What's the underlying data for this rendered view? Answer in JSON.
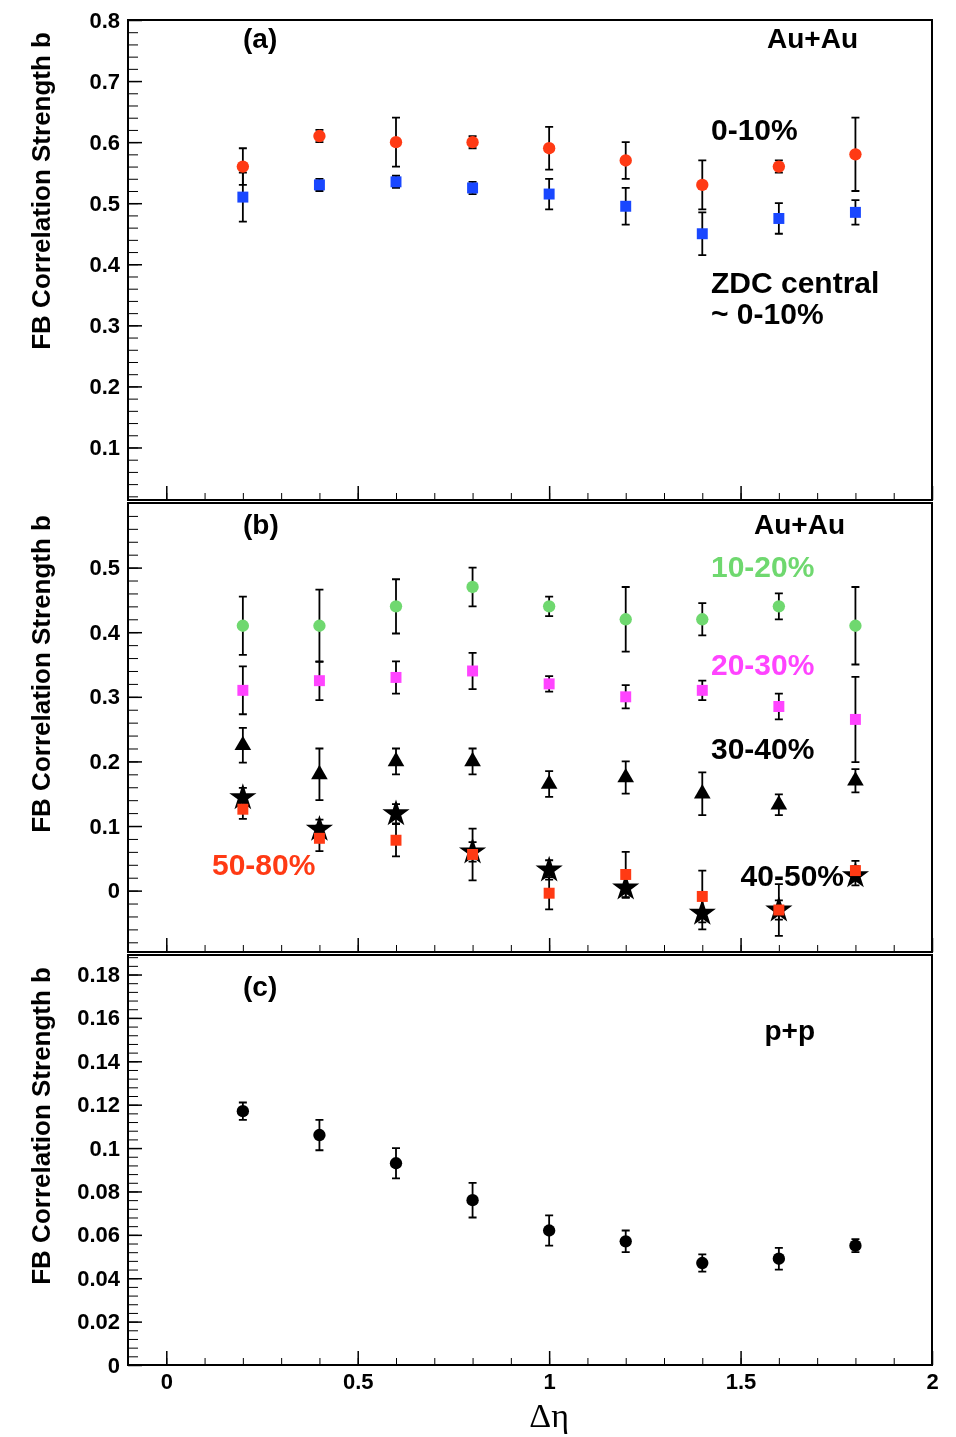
{
  "chart_data": [
    {
      "type": "scatter",
      "annotations": [
        "(a)",
        "Au+Au"
      ],
      "ylabel": "FB Correlation Strength b",
      "x": [
        0.2,
        0.4,
        0.6,
        0.8,
        1.0,
        1.2,
        1.4,
        1.6,
        1.8
      ],
      "xlim": [
        -0.1,
        2
      ],
      "xticks": [
        0,
        0.5,
        1,
        1.5,
        2
      ],
      "ylim": [
        0.014,
        0.8
      ],
      "yticks": [
        0.1,
        0.2,
        0.3,
        0.4,
        0.5,
        0.6,
        0.7,
        0.8
      ],
      "tick_labels": "y",
      "series": [
        {
          "name": "0-10%",
          "color": "#ff3a14",
          "marker": "circle",
          "values": [
            0.56,
            0.61,
            0.6,
            0.6,
            0.59,
            0.57,
            0.53,
            0.56,
            0.58
          ],
          "errors": [
            0.03,
            0.01,
            0.04,
            0.01,
            0.035,
            0.03,
            0.04,
            0.01,
            0.06
          ]
        },
        {
          "name": "ZDC central\n~ 0-10%",
          "color": "#1947ff",
          "marker": "square",
          "values": [
            0.51,
            0.53,
            0.535,
            0.525,
            0.515,
            0.495,
            0.45,
            0.475,
            0.485
          ],
          "errors": [
            0.04,
            0.01,
            0.01,
            0.01,
            0.025,
            0.03,
            0.035,
            0.025,
            0.02
          ]
        }
      ]
    },
    {
      "type": "scatter",
      "annotations": [
        "(b)",
        "Au+Au"
      ],
      "ylabel": "FB Correlation Strength b",
      "x": [
        0.2,
        0.4,
        0.6,
        0.8,
        1.0,
        1.2,
        1.4,
        1.6,
        1.8
      ],
      "xlim": [
        -0.1,
        2
      ],
      "xticks": [
        0,
        0.5,
        1,
        1.5,
        2
      ],
      "ylim": [
        -0.095,
        0.6
      ],
      "yticks": [
        0,
        0.1,
        0.2,
        0.3,
        0.4,
        0.5
      ],
      "tick_labels": "y",
      "series": [
        {
          "name": "10-20%",
          "color": "#6fd86f",
          "marker": "circle",
          "values": [
            0.41,
            0.41,
            0.44,
            0.47,
            0.44,
            0.42,
            0.42,
            0.44,
            0.41
          ],
          "errors": [
            0.045,
            0.056,
            0.042,
            0.03,
            0.015,
            0.05,
            0.025,
            0.02,
            0.06
          ]
        },
        {
          "name": "20-30%",
          "color": "#ff44ff",
          "marker": "square",
          "values": [
            0.31,
            0.325,
            0.33,
            0.34,
            0.32,
            0.3,
            0.31,
            0.285,
            0.265
          ],
          "errors": [
            0.037,
            0.03,
            0.025,
            0.028,
            0.012,
            0.018,
            0.015,
            0.02,
            0.066
          ]
        },
        {
          "name": "30-40%",
          "color": "#000000",
          "marker": "triangle",
          "values": [
            0.225,
            0.18,
            0.2,
            0.2,
            0.165,
            0.175,
            0.15,
            0.133,
            0.17
          ],
          "errors": [
            0.027,
            0.04,
            0.02,
            0.02,
            0.02,
            0.025,
            0.033,
            0.016,
            0.018
          ]
        },
        {
          "name": "40-50%",
          "color": "#000000",
          "marker": "star",
          "values": [
            0.144,
            0.095,
            0.119,
            0.06,
            0.032,
            0.004,
            -0.035,
            -0.03,
            0.023
          ],
          "errors": [
            0.015,
            0.015,
            0.015,
            0.015,
            0.015,
            0.015,
            0.025,
            0.015,
            0.015
          ]
        },
        {
          "name": "50-80%",
          "color": "#ff3a14",
          "marker": "square",
          "values": [
            0.126,
            0.081,
            0.078,
            0.056,
            -0.004,
            0.025,
            -0.009,
            -0.03,
            0.031
          ],
          "errors": [
            0.015,
            0.02,
            0.025,
            0.04,
            0.025,
            0.035,
            0.04,
            0.04,
            0.015
          ]
        }
      ]
    },
    {
      "type": "scatter",
      "annotations": [
        "(c)",
        "p+p"
      ],
      "ylabel": "FB Correlation Strength b",
      "xlabel": "Δη",
      "x": [
        0.2,
        0.4,
        0.6,
        0.8,
        1.0,
        1.2,
        1.4,
        1.6,
        1.8
      ],
      "xlim": [
        -0.1,
        2
      ],
      "xticks": [
        0,
        0.5,
        1,
        1.5,
        2
      ],
      "ylim": [
        0,
        0.189
      ],
      "yticks": [
        0,
        0.02,
        0.04,
        0.06,
        0.08,
        0.1,
        0.12,
        0.14,
        0.16,
        0.18
      ],
      "series": [
        {
          "color": "#000000",
          "marker": "circle",
          "values": [
            0.117,
            0.106,
            0.093,
            0.076,
            0.062,
            0.057,
            0.047,
            0.049,
            0.055
          ],
          "errors": [
            0.004,
            0.007,
            0.007,
            0.008,
            0.007,
            0.005,
            0.004,
            0.005,
            0.003
          ]
        }
      ]
    }
  ]
}
